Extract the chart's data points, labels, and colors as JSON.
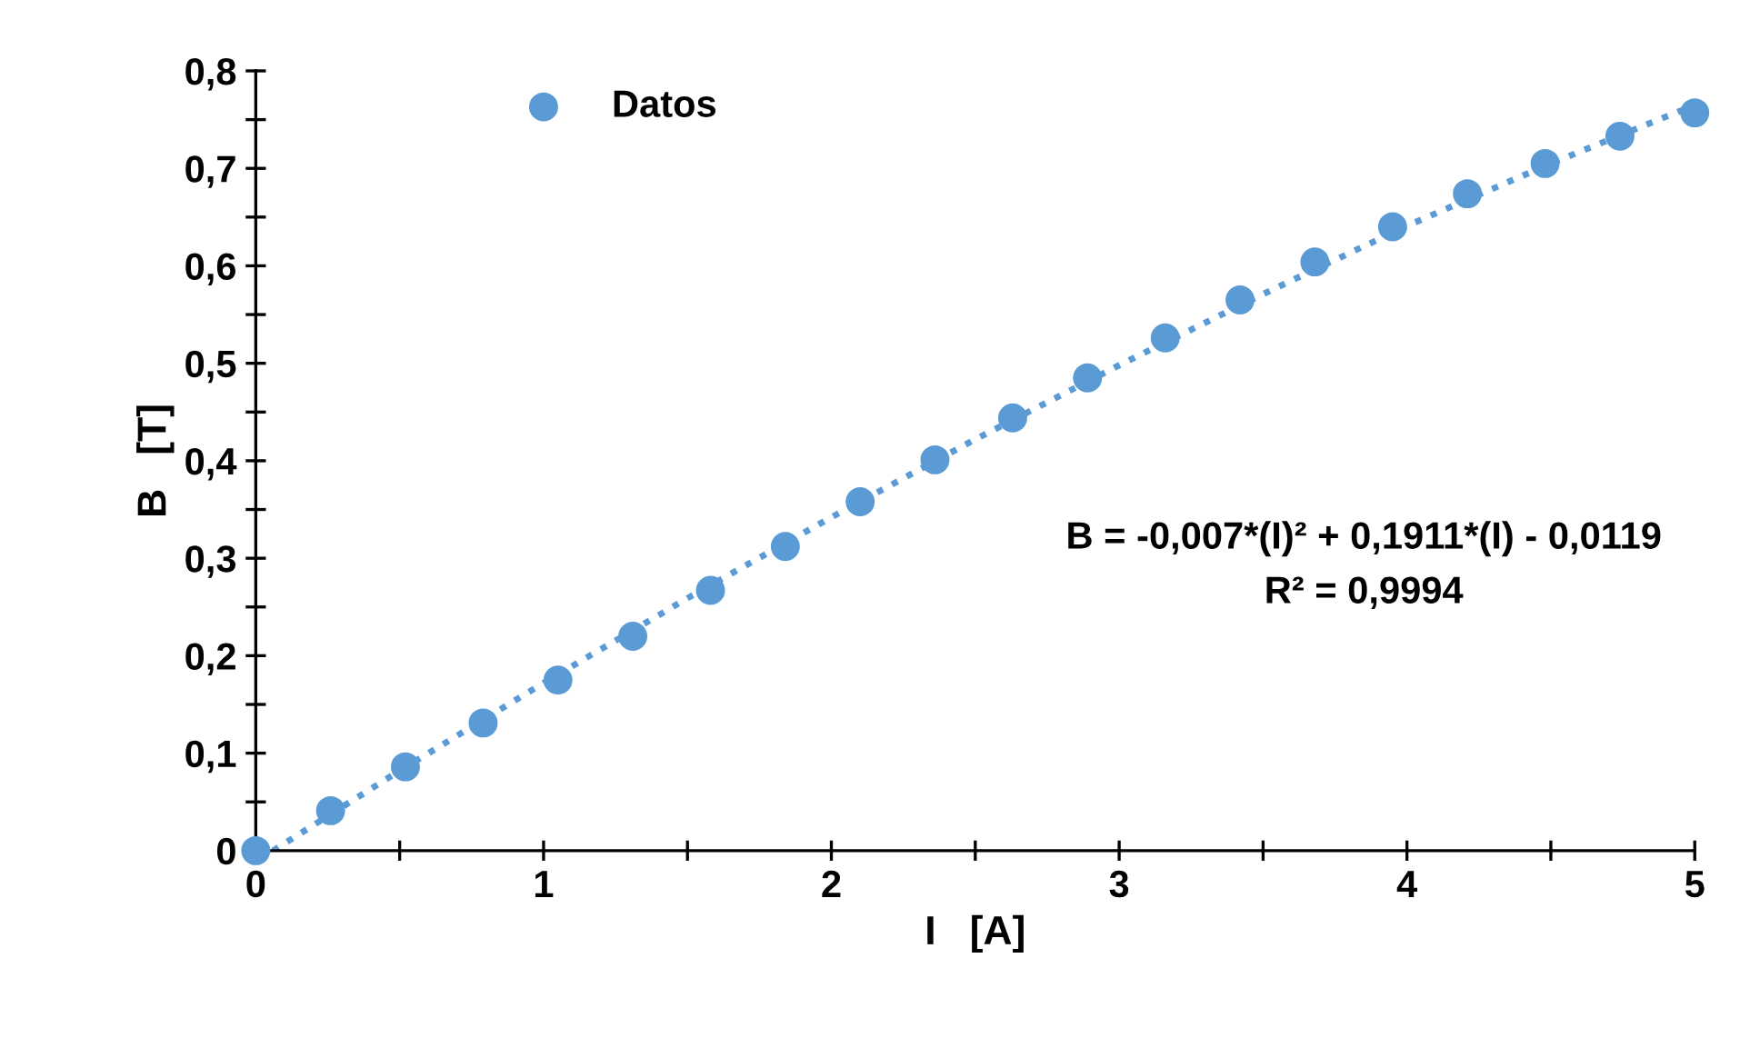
{
  "chart_data": {
    "type": "scatter",
    "xlabel": "I   [A]",
    "ylabel": "B   [T]",
    "xlim": [
      0,
      5
    ],
    "ylim": [
      0,
      0.8
    ],
    "xticks": [
      0,
      {
        "value": 0.5,
        "label": null
      },
      1,
      {
        "value": 1.5,
        "label": null
      },
      2,
      {
        "value": 2.5,
        "label": null
      },
      3,
      {
        "value": 3.5,
        "label": null
      },
      4,
      {
        "value": 4.5,
        "label": null
      },
      5
    ],
    "yticks": [
      0,
      {
        "value": 0.05,
        "label": null
      },
      {
        "value": 0.1,
        "label": "0,1"
      },
      {
        "value": 0.15,
        "label": null
      },
      {
        "value": 0.2,
        "label": "0,2"
      },
      {
        "value": 0.25,
        "label": null
      },
      {
        "value": 0.3,
        "label": "0,3"
      },
      {
        "value": 0.35,
        "label": null
      },
      {
        "value": 0.4,
        "label": "0,4"
      },
      {
        "value": 0.45,
        "label": null
      },
      {
        "value": 0.5,
        "label": "0,5"
      },
      {
        "value": 0.55,
        "label": null
      },
      {
        "value": 0.6,
        "label": "0,6"
      },
      {
        "value": 0.65,
        "label": null
      },
      {
        "value": 0.7,
        "label": "0,7"
      },
      {
        "value": 0.75,
        "label": null
      },
      {
        "value": 0.8,
        "label": "0,8"
      }
    ],
    "grid": false,
    "legend": "top left",
    "series": [
      {
        "name": "Datos",
        "marker": "circle",
        "color": "#5b9bd5",
        "x": [
          0,
          0.26,
          0.52,
          0.79,
          1.05,
          1.31,
          1.58,
          1.84,
          2.1,
          2.36,
          2.63,
          2.89,
          3.16,
          3.42,
          3.68,
          3.95,
          4.21,
          4.48,
          4.74,
          5.0
        ],
        "values": [
          0,
          0.041,
          0.086,
          0.131,
          0.175,
          0.22,
          0.267,
          0.312,
          0.358,
          0.401,
          0.444,
          0.485,
          0.526,
          0.565,
          0.604,
          0.64,
          0.674,
          0.705,
          0.733,
          0.757
        ]
      },
      {
        "type": "line",
        "marker": "none",
        "line_style": "dotted",
        "color": "#5b9bd5",
        "x": [
          0.06,
          0.5,
          1,
          1.5,
          2,
          2.5,
          3,
          3.5,
          4,
          4.5,
          5
        ],
        "values": [
          0,
          0.082,
          0.172,
          0.259,
          0.342,
          0.422,
          0.498,
          0.571,
          0.641,
          0.705,
          0.765
        ]
      }
    ],
    "annotations": [
      "B = -0,007*(I)² + 0,1911*(I) - 0,0119",
      "R² = 0,9994"
    ]
  }
}
